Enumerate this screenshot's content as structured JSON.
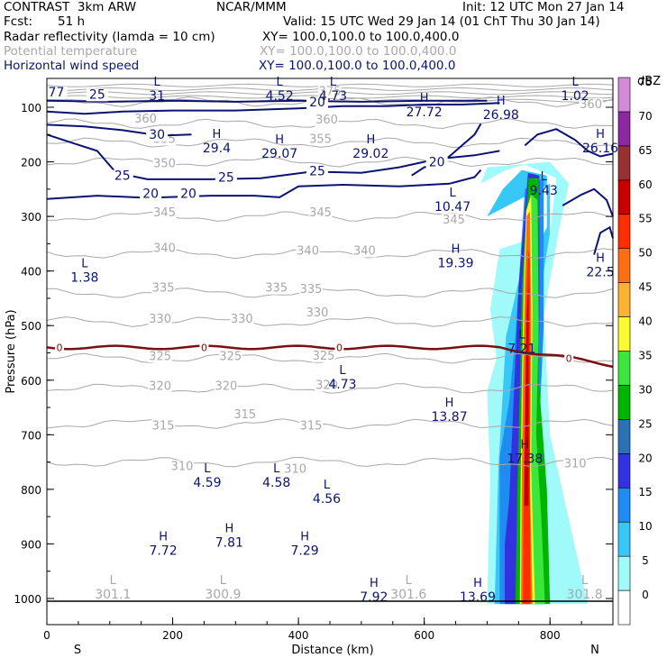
{
  "header": {
    "model": "CONTRAST  3km ARW",
    "org": "NCAR/MMM",
    "init": "Init: 12 UTC Mon 27 Jan 14",
    "fcst_label": "Fcst:",
    "fcst_value": "51 h",
    "valid": "Valid: 15 UTC Wed 29 Jan 14 (01 ChT Thu 30 Jan 14)",
    "field1_name": "Radar reflectivity (lamda = 10 cm)",
    "field1_xy": "XY= 100.0,100.0 to 100.0,400.0",
    "field2_name": "Potential temperature",
    "field2_xy": "XY= 100.0,100.0 to 100.0,400.0",
    "field3_name": "Horizontal wind speed",
    "field3_xy": "XY= 100.0,100.0 to 100.0,400.0"
  },
  "colors": {
    "theta": "#a8a8a8",
    "wind": "#0a1470",
    "freezing": "#7a1010"
  },
  "chart_data": {
    "type": "heatmap",
    "title": "Radar reflectivity / Potential temperature / Horizontal wind speed cross-section",
    "xlabel": "Distance (km)",
    "ylabel": "Pressure (hPa)",
    "xlim": [
      0,
      900
    ],
    "ylim": [
      1040,
      50
    ],
    "x_ticks": [
      0,
      200,
      400,
      600,
      800
    ],
    "y_ticks": [
      100,
      200,
      300,
      400,
      500,
      600,
      700,
      800,
      900,
      1000
    ],
    "x_end_labels": [
      "S",
      "N"
    ],
    "colorbar": {
      "unit": "dBZ",
      "levels": [
        0,
        5,
        10,
        15,
        20,
        25,
        30,
        35,
        40,
        45,
        50,
        55,
        60,
        65,
        70,
        75
      ],
      "colors": [
        "#ffffff",
        "#a0fafa",
        "#38c8f8",
        "#1e8cf0",
        "#3232e0",
        "#2a72b4",
        "#00b400",
        "#3ce63c",
        "#fafa32",
        "#fab432",
        "#fa6e14",
        "#ff2d00",
        "#c80000",
        "#963232",
        "#8c28a0",
        "#d28cd7"
      ]
    },
    "theta_contours": [
      {
        "value": 310,
        "p_left": 750,
        "p_right": 750
      },
      {
        "value": 315,
        "p_left": 680,
        "p_right": 680
      },
      {
        "value": 320,
        "p_left": 615,
        "p_right": 615
      },
      {
        "value": 325,
        "p_left": 560,
        "p_right": 560
      },
      {
        "value": 330,
        "p_left": 493,
        "p_right": 493
      },
      {
        "value": 335,
        "p_left": 440,
        "p_right": 440
      },
      {
        "value": 340,
        "p_left": 368,
        "p_right": 368
      },
      {
        "value": 345,
        "p_left": 300,
        "p_right": 300
      },
      {
        "value": 350,
        "p_left": 200,
        "p_right": 200
      },
      {
        "value": 355,
        "p_left": 165,
        "p_right": 165
      },
      {
        "value": 360,
        "p_left": 130,
        "p_right": 130
      },
      {
        "value": 375,
        "p_left": 90,
        "p_right": 90
      }
    ],
    "theta_labels": [
      {
        "text": "310",
        "x": 215,
        "p": 765
      },
      {
        "text": "310",
        "x": 395,
        "p": 770
      },
      {
        "text": "310",
        "x": 840,
        "p": 760
      },
      {
        "text": "315",
        "x": 185,
        "p": 690
      },
      {
        "text": "315",
        "x": 420,
        "p": 690
      },
      {
        "text": "315",
        "x": 315,
        "p": 670
      },
      {
        "text": "320",
        "x": 180,
        "p": 618
      },
      {
        "text": "320",
        "x": 285,
        "p": 618
      },
      {
        "text": "320",
        "x": 445,
        "p": 616
      },
      {
        "text": "325",
        "x": 180,
        "p": 563
      },
      {
        "text": "325",
        "x": 292,
        "p": 563
      },
      {
        "text": "325",
        "x": 440,
        "p": 562
      },
      {
        "text": "330",
        "x": 180,
        "p": 495
      },
      {
        "text": "330",
        "x": 310,
        "p": 495
      },
      {
        "text": "330",
        "x": 430,
        "p": 483
      },
      {
        "text": "335",
        "x": 185,
        "p": 438
      },
      {
        "text": "335",
        "x": 365,
        "p": 438
      },
      {
        "text": "335",
        "x": 420,
        "p": 440
      },
      {
        "text": "340",
        "x": 187,
        "p": 365
      },
      {
        "text": "340",
        "x": 415,
        "p": 370
      },
      {
        "text": "340",
        "x": 505,
        "p": 370
      },
      {
        "text": "345",
        "x": 187,
        "p": 300
      },
      {
        "text": "345",
        "x": 435,
        "p": 300
      },
      {
        "text": "345",
        "x": 647,
        "p": 313
      },
      {
        "text": "350",
        "x": 187,
        "p": 210
      },
      {
        "text": "355",
        "x": 187,
        "p": 165
      },
      {
        "text": "355",
        "x": 435,
        "p": 165
      },
      {
        "text": "360",
        "x": 157,
        "p": 128
      },
      {
        "text": "360",
        "x": 445,
        "p": 130
      },
      {
        "text": "360",
        "x": 865,
        "p": 102
      },
      {
        "text": "375",
        "x": 450,
        "p": 78
      }
    ],
    "freezing_level": {
      "label": "0",
      "p": 540,
      "label_x": [
        20,
        250,
        465,
        830
      ]
    },
    "wind_contours": [
      {
        "value": 30,
        "p_left": 130,
        "label_x": 175,
        "label_p": 158
      },
      {
        "value": 25,
        "p_left": 160,
        "label_x": 120,
        "label_p": 233
      },
      {
        "value": 25,
        "p_left": 230,
        "label_x": 285,
        "label_p": 236
      },
      {
        "value": 25,
        "p_left": 230,
        "label_x": 430,
        "label_p": 225
      },
      {
        "value": 20,
        "p_left": 265,
        "label_x": 165,
        "label_p": 266
      },
      {
        "value": 20,
        "p_left": 265,
        "label_x": 225,
        "label_p": 266
      },
      {
        "value": 20,
        "p_left": 80,
        "label_x": 430,
        "label_p": 98
      },
      {
        "value": 20,
        "p_left": 80,
        "label_x": 620,
        "label_p": 208
      },
      {
        "value": 25,
        "p_left": 80,
        "label_x": 80,
        "label_p": 84
      },
      {
        "value": 77,
        "p_left": 80,
        "label_x": 15,
        "label_p": 80
      }
    ],
    "annotations": [
      {
        "type": "L",
        "value": "1.38",
        "x": 60,
        "p": 405
      },
      {
        "type": "L",
        "value": "4.59",
        "x": 255,
        "p": 780
      },
      {
        "type": "L",
        "value": "4.58",
        "x": 365,
        "p": 780
      },
      {
        "type": "L",
        "value": "4.56",
        "x": 445,
        "p": 810
      },
      {
        "type": "L",
        "value": "4.73",
        "x": 470,
        "p": 600
      },
      {
        "type": "L",
        "value": "10.47",
        "x": 645,
        "p": 275
      },
      {
        "type": "L",
        "value": "9.43",
        "x": 790,
        "p": 245
      },
      {
        "type": "L",
        "value": "7.21",
        "x": 755,
        "p": 535
      },
      {
        "type": "L",
        "value": "31",
        "x": 175,
        "p": 72
      },
      {
        "type": "L",
        "value": "4.52",
        "x": 370,
        "p": 72
      },
      {
        "type": "L",
        "value": "4.73",
        "x": 455,
        "p": 72
      },
      {
        "type": "L",
        "value": "1.02",
        "x": 840,
        "p": 72
      },
      {
        "type": "L",
        "value": "301.1",
        "x": 105,
        "p": 985
      },
      {
        "type": "L",
        "value": "300.9",
        "x": 280,
        "p": 985
      },
      {
        "type": "L",
        "value": "301.6",
        "x": 575,
        "p": 985
      },
      {
        "type": "L",
        "value": "301.8",
        "x": 855,
        "p": 985
      },
      {
        "type": "H",
        "value": "27.72",
        "x": 600,
        "p": 102
      },
      {
        "type": "H",
        "value": "26.98",
        "x": 722,
        "p": 107
      },
      {
        "type": "H",
        "value": "29.4",
        "x": 270,
        "p": 168
      },
      {
        "type": "H",
        "value": "29.07",
        "x": 370,
        "p": 178
      },
      {
        "type": "H",
        "value": "29.02",
        "x": 515,
        "p": 178
      },
      {
        "type": "H",
        "value": "26.16",
        "x": 880,
        "p": 168
      },
      {
        "type": "H",
        "value": "19.39",
        "x": 650,
        "p": 378
      },
      {
        "type": "H",
        "value": "22.5",
        "x": 880,
        "p": 395
      },
      {
        "type": "H",
        "value": "13.87",
        "x": 640,
        "p": 660
      },
      {
        "type": "H",
        "value": "17.38",
        "x": 760,
        "p": 737
      },
      {
        "type": "H",
        "value": "7.72",
        "x": 185,
        "p": 905
      },
      {
        "type": "H",
        "value": "7.81",
        "x": 290,
        "p": 890
      },
      {
        "type": "H",
        "value": "7.29",
        "x": 410,
        "p": 905
      },
      {
        "type": "H",
        "value": "7.92",
        "x": 520,
        "p": 990
      },
      {
        "type": "H",
        "value": "13.69",
        "x": 685,
        "p": 990
      }
    ]
  }
}
